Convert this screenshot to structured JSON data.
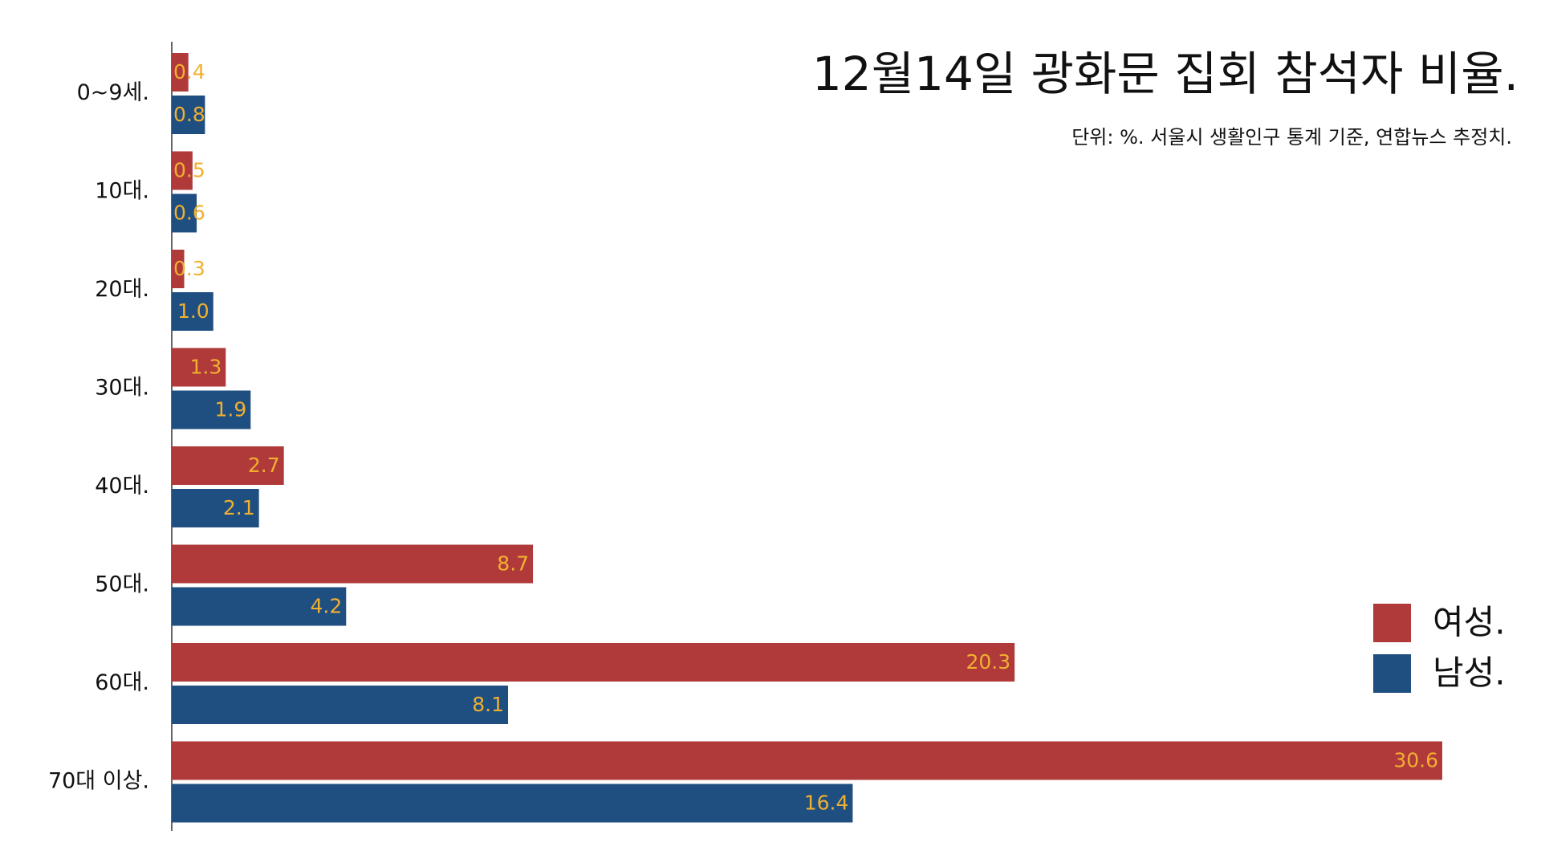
{
  "chart_data": {
    "type": "bar",
    "orientation": "horizontal",
    "title": "12월14일 광화문 집회 참석자 비율.",
    "subtitle": "단위: %. 서울시 생활인구 통계 기준, 연합뉴스 추정치.",
    "categories": [
      "0~9세.",
      "10대.",
      "20대.",
      "30대.",
      "40대.",
      "50대.",
      "60대.",
      "70대 이상."
    ],
    "series": [
      {
        "name": "여성.",
        "color": "#b03a3a",
        "values": [
          0.4,
          0.5,
          0.3,
          1.3,
          2.7,
          8.7,
          20.3,
          30.6
        ],
        "value_labels": [
          "0.4",
          "0.5",
          "0.3",
          "1.3",
          "2.7",
          "8.7",
          "20.3",
          "30.6"
        ]
      },
      {
        "name": "남성.",
        "color": "#1f4e80",
        "values": [
          0.8,
          0.6,
          1,
          1.9,
          2.1,
          4.2,
          8.1,
          16.4
        ],
        "value_labels": [
          "0.8",
          "0.6",
          "1.0",
          "1.9",
          "2.1",
          "4.2",
          "8.1",
          "16.4"
        ]
      }
    ],
    "xlim": [
      0,
      30.6
    ],
    "label_color": "#f0b030",
    "legend": "right"
  }
}
